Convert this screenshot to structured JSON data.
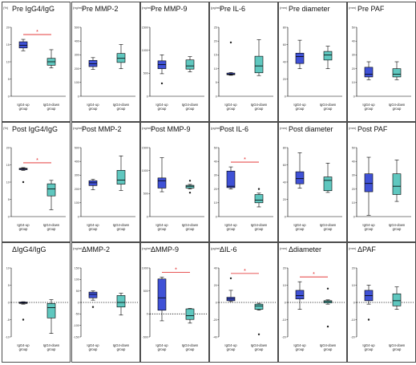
{
  "colors": {
    "up": "#3f51d6",
    "down": "#5fc7bf",
    "sig": "#e02020",
    "axis": "#000000"
  },
  "chart_data": [
    {
      "type": "box",
      "title": "Pre IgG4/IgG",
      "unit": "(%)",
      "ylim": [
        0,
        20
      ],
      "yticks": [
        "0",
        "5",
        "10",
        "15",
        "20"
      ],
      "groups": [
        "IgG4-up group",
        "IgG4-down group"
      ],
      "boxes": [
        {
          "q1": 14,
          "median": 14.8,
          "q3": 15.8,
          "whislo": 13.2,
          "whishi": 16.5,
          "outliers": []
        },
        {
          "q1": 9,
          "median": 10,
          "q3": 11,
          "whislo": 8.2,
          "whishi": 13.5,
          "outliers": []
        }
      ],
      "sig": "*",
      "zero_line": false
    },
    {
      "type": "box",
      "title": "Pre MMP-2",
      "unit": "(ng/mL)",
      "ylim": [
        0,
        500
      ],
      "yticks": [
        "0",
        "100",
        "200",
        "300",
        "400",
        "500"
      ],
      "groups": [
        "IgG4-up group",
        "IgG4-down group"
      ],
      "boxes": [
        {
          "q1": 215,
          "median": 235,
          "q3": 260,
          "whislo": 195,
          "whishi": 280,
          "outliers": []
        },
        {
          "q1": 245,
          "median": 275,
          "q3": 310,
          "whislo": 200,
          "whishi": 375,
          "outliers": []
        }
      ],
      "sig": "",
      "zero_line": false
    },
    {
      "type": "box",
      "title": "Pre MMP-9",
      "unit": "(ng/mL)",
      "ylim": [
        0,
        1500
      ],
      "yticks": [
        "0",
        "500",
        "1000",
        "1500"
      ],
      "groups": [
        "IgG4-up group",
        "IgG4-down group"
      ],
      "boxes": [
        {
          "q1": 600,
          "median": 690,
          "q3": 770,
          "whislo": 490,
          "whishi": 900,
          "outliers": [
            280
          ]
        },
        {
          "q1": 590,
          "median": 660,
          "q3": 790,
          "whislo": 530,
          "whishi": 860,
          "outliers": []
        }
      ],
      "sig": "",
      "zero_line": false
    },
    {
      "type": "box",
      "title": "Pre IL-6",
      "unit": "(pg/mL)",
      "ylim": [
        0,
        25
      ],
      "yticks": [
        "0",
        "5",
        "10",
        "15",
        "20",
        "25"
      ],
      "groups": [
        "IgG4-up group",
        "IgG4-down group"
      ],
      "boxes": [
        {
          "q1": 7.8,
          "median": 8,
          "q3": 8.4,
          "whislo": 7.6,
          "whishi": 8.6,
          "outliers": [
            19.5
          ]
        },
        {
          "q1": 8.5,
          "median": 11,
          "q3": 14.5,
          "whislo": 7.5,
          "whishi": 20.5,
          "outliers": []
        }
      ],
      "sig": "",
      "zero_line": false
    },
    {
      "type": "box",
      "title": "Pre diameter",
      "unit": "(mm)",
      "ylim": [
        0,
        80
      ],
      "yticks": [
        "0",
        "20",
        "40",
        "60",
        "80"
      ],
      "groups": [
        "IgG4-up group",
        "IgG4-down group"
      ],
      "boxes": [
        {
          "q1": 38,
          "median": 46,
          "q3": 50,
          "whislo": 32,
          "whishi": 65,
          "outliers": []
        },
        {
          "q1": 42,
          "median": 48,
          "q3": 52,
          "whislo": 32,
          "whishi": 58,
          "outliers": []
        }
      ],
      "sig": "",
      "zero_line": false
    },
    {
      "type": "box",
      "title": "Pre PAF",
      "unit": "(mm)",
      "ylim": [
        0,
        50
      ],
      "yticks": [
        "0",
        "10",
        "20",
        "30",
        "40",
        "50"
      ],
      "groups": [
        "IgG4-up group",
        "IgG4-down group"
      ],
      "boxes": [
        {
          "q1": 14,
          "median": 16,
          "q3": 21,
          "whislo": 12,
          "whishi": 25,
          "outliers": []
        },
        {
          "q1": 14,
          "median": 16,
          "q3": 20,
          "whislo": 12,
          "whishi": 25,
          "outliers": []
        }
      ],
      "sig": "",
      "zero_line": false
    },
    {
      "type": "box",
      "title": "Post IgG4/IgG",
      "unit": "(%)",
      "ylim": [
        0,
        20
      ],
      "yticks": [
        "0",
        "5",
        "10",
        "15",
        "20"
      ],
      "groups": [
        "IgG4-up group",
        "IgG4-down group"
      ],
      "boxes": [
        {
          "q1": 13.6,
          "median": 13.8,
          "q3": 14,
          "whislo": 13.4,
          "whishi": 14.2,
          "outliers": [
            10
          ]
        },
        {
          "q1": 6,
          "median": 8,
          "q3": 9.5,
          "whislo": 2,
          "whishi": 10.5,
          "outliers": []
        }
      ],
      "sig": "*",
      "zero_line": false
    },
    {
      "type": "box",
      "title": "Post MMP-2",
      "unit": "(ng/mL)",
      "ylim": [
        0,
        500
      ],
      "yticks": [
        "0",
        "100",
        "200",
        "300",
        "400",
        "500"
      ],
      "groups": [
        "IgG4-up group",
        "IgG4-down group"
      ],
      "boxes": [
        {
          "q1": 225,
          "median": 245,
          "q3": 260,
          "whislo": 195,
          "whishi": 270,
          "outliers": []
        },
        {
          "q1": 235,
          "median": 265,
          "q3": 335,
          "whislo": 190,
          "whishi": 440,
          "outliers": []
        }
      ],
      "sig": "",
      "zero_line": false
    },
    {
      "type": "box",
      "title": "Post MMP-9",
      "unit": "(ng/mL)",
      "ylim": [
        0,
        1500
      ],
      "yticks": [
        "0",
        "500",
        "1000",
        "1500"
      ],
      "groups": [
        "IgG4-up group",
        "IgG4-down group"
      ],
      "boxes": [
        {
          "q1": 620,
          "median": 780,
          "q3": 840,
          "whislo": 540,
          "whishi": 1280,
          "outliers": []
        },
        {
          "q1": 620,
          "median": 660,
          "q3": 680,
          "whislo": 600,
          "whishi": 700,
          "outliers": [
            780,
            520
          ]
        }
      ],
      "sig": "",
      "zero_line": false
    },
    {
      "type": "box",
      "title": "Post IL-6",
      "unit": "(pg/mL)",
      "ylim": [
        0,
        50
      ],
      "yticks": [
        "0",
        "10",
        "20",
        "30",
        "40",
        "50"
      ],
      "groups": [
        "IgG4-up group",
        "IgG4-down group"
      ],
      "boxes": [
        {
          "q1": 21,
          "median": 22,
          "q3": 33,
          "whislo": 20,
          "whishi": 36,
          "outliers": []
        },
        {
          "q1": 10,
          "median": 12,
          "q3": 16,
          "whislo": 7,
          "whishi": 17,
          "outliers": [
            20
          ]
        }
      ],
      "sig": "*",
      "zero_line": false
    },
    {
      "type": "box",
      "title": "Post diameter",
      "unit": "(mm)",
      "ylim": [
        0,
        80
      ],
      "yticks": [
        "0",
        "20",
        "40",
        "60",
        "80"
      ],
      "groups": [
        "IgG4-up group",
        "IgG4-down group"
      ],
      "boxes": [
        {
          "q1": 38,
          "median": 44,
          "q3": 52,
          "whislo": 33,
          "whishi": 74,
          "outliers": []
        },
        {
          "q1": 30,
          "median": 42,
          "q3": 46,
          "whislo": 28,
          "whishi": 62,
          "outliers": []
        }
      ],
      "sig": "",
      "zero_line": false
    },
    {
      "type": "box",
      "title": "Post PAF",
      "unit": "(mm)",
      "ylim": [
        0,
        50
      ],
      "yticks": [
        "0",
        "10",
        "20",
        "30",
        "40",
        "50"
      ],
      "groups": [
        "IgG4-up group",
        "IgG4-down group"
      ],
      "boxes": [
        {
          "q1": 18,
          "median": 24,
          "q3": 31,
          "whislo": 1,
          "whishi": 43,
          "outliers": []
        },
        {
          "q1": 16,
          "median": 22,
          "q3": 31,
          "whislo": 11,
          "whishi": 41,
          "outliers": []
        }
      ],
      "sig": "",
      "zero_line": false
    },
    {
      "type": "box",
      "title": "ΔIgG4/IgG",
      "unit": "",
      "ylim": [
        -10,
        10
      ],
      "yticks": [
        "-10",
        "-5",
        "0",
        "5",
        "10"
      ],
      "groups": [
        "IgG4-up group",
        "IgG4-down group"
      ],
      "boxes": [
        {
          "q1": -0.3,
          "median": -0.1,
          "q3": 0.1,
          "whislo": -0.5,
          "whishi": 0.2,
          "outliers": [
            -5
          ]
        },
        {
          "q1": -4.5,
          "median": -1.5,
          "q3": -0.3,
          "whislo": -9,
          "whishi": 0.8,
          "outliers": []
        }
      ],
      "sig": "",
      "zero_line": true
    },
    {
      "type": "box",
      "title": "ΔMMP-2",
      "unit": "(ng/mL)",
      "ylim": [
        -150,
        150
      ],
      "yticks": [
        "-150",
        "-100",
        "-50",
        "0",
        "50",
        "100",
        "150"
      ],
      "groups": [
        "IgG4-up group",
        "IgG4-down group"
      ],
      "boxes": [
        {
          "q1": 20,
          "median": 35,
          "q3": 45,
          "whislo": 10,
          "whishi": 50,
          "outliers": [
            -20
          ]
        },
        {
          "q1": -20,
          "median": 0,
          "q3": 30,
          "whislo": -55,
          "whishi": 40,
          "outliers": []
        }
      ],
      "sig": "",
      "zero_line": true
    },
    {
      "type": "box",
      "title": "ΔMMP-9",
      "unit": "(ng/mL)",
      "ylim": [
        -500,
        1000
      ],
      "yticks": [
        "-500",
        "0",
        "500",
        "1000"
      ],
      "groups": [
        "IgG4-up group",
        "IgG4-down group"
      ],
      "boxes": [
        {
          "q1": 80,
          "median": 350,
          "q3": 760,
          "whislo": -150,
          "whishi": 800,
          "outliers": []
        },
        {
          "q1": -120,
          "median": -40,
          "q3": 110,
          "whislo": -200,
          "whishi": 120,
          "outliers": []
        }
      ],
      "sig": "*",
      "zero_line": true
    },
    {
      "type": "box",
      "title": "ΔIL-6",
      "unit": "(pg/mL)",
      "ylim": [
        -40,
        40
      ],
      "yticks": [
        "-40",
        "-20",
        "0",
        "20",
        "40"
      ],
      "groups": [
        "IgG4-up group",
        "IgG4-down group"
      ],
      "boxes": [
        {
          "q1": 2,
          "median": 4,
          "q3": 6,
          "whislo": 1,
          "whishi": 14,
          "outliers": [
            28
          ]
        },
        {
          "q1": -8,
          "median": -4,
          "q3": -2,
          "whislo": -9,
          "whishi": -1,
          "outliers": [
            -37
          ]
        }
      ],
      "sig": "*",
      "zero_line": true
    },
    {
      "type": "box",
      "title": "Δdiameter",
      "unit": "(mm)",
      "ylim": [
        -20,
        20
      ],
      "yticks": [
        "-20",
        "-10",
        "0",
        "10",
        "20"
      ],
      "groups": [
        "IgG4-up group",
        "IgG4-down group"
      ],
      "boxes": [
        {
          "q1": 2,
          "median": 4,
          "q3": 7,
          "whislo": -4,
          "whishi": 12,
          "outliers": []
        },
        {
          "q1": -0.3,
          "median": 0.5,
          "q3": 1,
          "whislo": -1,
          "whishi": 1.5,
          "outliers": [
            8,
            -14
          ]
        }
      ],
      "sig": "*",
      "zero_line": true
    },
    {
      "type": "box",
      "title": "ΔPAF",
      "unit": "(mm)",
      "ylim": [
        -20,
        20
      ],
      "yticks": [
        "-20",
        "-10",
        "0",
        "10",
        "20"
      ],
      "groups": [
        "IgG4-up group",
        "IgG4-down group"
      ],
      "boxes": [
        {
          "q1": 1,
          "median": 4,
          "q3": 7,
          "whislo": -1,
          "whishi": 10,
          "outliers": [
            -10
          ]
        },
        {
          "q1": -2,
          "median": 1,
          "q3": 5,
          "whislo": -4,
          "whishi": 9,
          "outliers": []
        }
      ],
      "sig": "",
      "zero_line": true
    }
  ]
}
